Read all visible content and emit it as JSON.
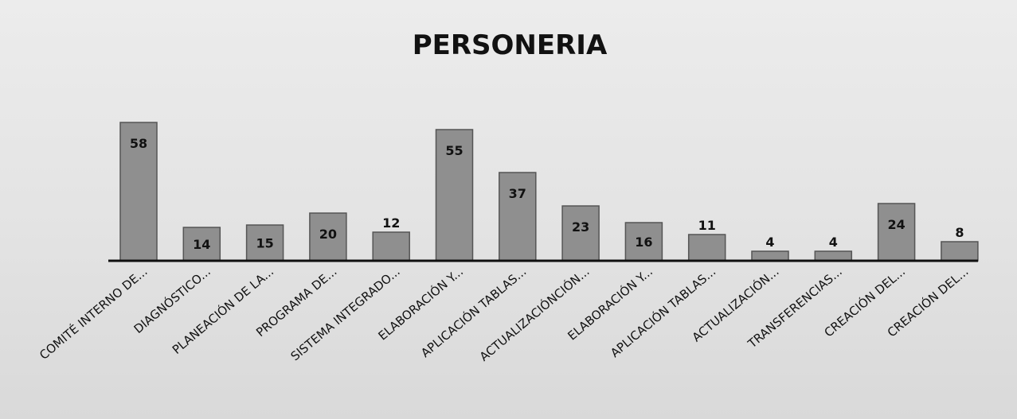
{
  "chart_data": {
    "type": "bar",
    "title": "PERSONERIA",
    "xlabel": "",
    "ylabel": "",
    "ylim": [
      0,
      60
    ],
    "grid": false,
    "legend": "none",
    "categories": [
      "COMITÉ INTERNO DE...",
      "DIAGNÓSTICO...",
      "PLANEACIÓN DE LA...",
      "PROGRAMA DE...",
      "SISTEMA INTEGRADO...",
      "ELABORACIÓN Y...",
      "APLICACIÓN TABLAS...",
      "ACTUALIZACIÓNCIÓN...",
      "ELABORACIÓN Y...",
      "APLICACIÓN TABLAS...",
      "ACTUALIZACIÓN...",
      "TRANSFERENCIAS...",
      "CREACIÓN DEL...",
      "CREACIÓN DEL..."
    ],
    "values": [
      58,
      14,
      15,
      20,
      12,
      55,
      37,
      23,
      16,
      11,
      4,
      4,
      24,
      8
    ],
    "colors": {
      "bar_fill": "#8f8f8f",
      "bar_stroke": "#555555",
      "axis": "#111111",
      "text": "#111111"
    }
  }
}
